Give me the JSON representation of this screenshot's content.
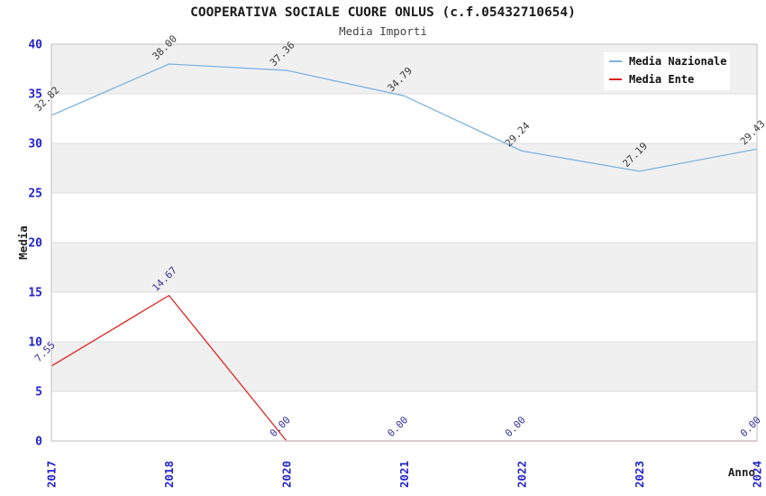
{
  "header": {
    "title": "COOPERATIVA SOCIALE CUORE ONLUS (c.f.05432710654)",
    "subtitle": "Media Importi"
  },
  "legend": {
    "items": [
      {
        "label": "Media Nazionale",
        "color": "#7eb3e3"
      },
      {
        "label": "Media Ente",
        "color": "#dd2222"
      }
    ]
  },
  "chart_data": {
    "type": "line",
    "title": "COOPERATIVA SOCIALE CUORE ONLUS (c.f.05432710654)",
    "subtitle": "Media Importi",
    "xlabel": "Anno",
    "ylabel": "Media",
    "categories": [
      "2017",
      "2018",
      "2020",
      "2021",
      "2022",
      "2023",
      "2024"
    ],
    "series": [
      {
        "name": "Media Nazionale",
        "color": "#7eb3e3",
        "label_color": "#3a3a3a",
        "values": [
          32.82,
          38.0,
          37.36,
          34.79,
          29.24,
          27.19,
          29.43
        ],
        "labels": [
          "32.82",
          "38.00",
          "37.36",
          "34.79",
          "29.24",
          "27.19",
          "29.43"
        ]
      },
      {
        "name": "Media Ente",
        "color": "#dd2222",
        "label_color": "#333399",
        "values": [
          7.55,
          14.67,
          0,
          0,
          0,
          0,
          0
        ],
        "labels": [
          "7.55",
          "14.67",
          "0.00",
          "0.00",
          "0.00",
          "",
          "0.00"
        ]
      }
    ],
    "ylim": [
      0,
      40
    ],
    "yticks": [
      0,
      5,
      10,
      15,
      20,
      25,
      30,
      35,
      40
    ],
    "grid": true,
    "band_fill": true,
    "legend_position": "top-right",
    "colors": {
      "band": "#f0f0f0",
      "gridline": "#dcdcdc",
      "border": "#d0d0d0",
      "tick_label": "#2222cc",
      "axis_label": "#222222"
    }
  }
}
